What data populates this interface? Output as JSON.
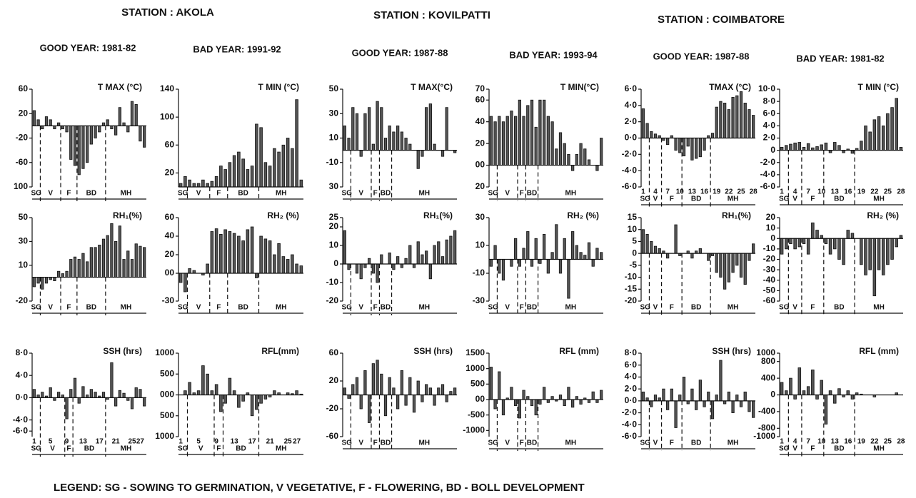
{
  "stations": [
    {
      "name": "STATION : AKOLA",
      "years": [
        "GOOD YEAR: 1981-82",
        "BAD YEAR: 1991-92"
      ]
    },
    {
      "name": "STATION : KOVILPATTI",
      "years": [
        "GOOD YEAR: 1987-88",
        "BAD YEAR: 1993-94"
      ]
    },
    {
      "name": "STATION : COIMBATORE",
      "years": [
        "GOOD YEAR: 1987-88",
        "BAD YEAR: 1981-82"
      ]
    }
  ],
  "legend": "LEGEND:  SG - SOWING TO GERMINATION,   V   VEGETATIVE,    F - FLOWERING,   BD - BOLL DEVELOPMENT",
  "chart_data": [
    {
      "type": "bar",
      "title": "T MAX (°C)",
      "color": "#555",
      "ylim": [
        -100,
        60
      ],
      "yticks": [
        60,
        20,
        -20,
        -60,
        {
          "value": -100,
          "label": "100"
        }
      ],
      "values": [
        25,
        10,
        -5,
        15,
        10,
        -5,
        5,
        -5,
        -10,
        -55,
        -65,
        -80,
        -70,
        -60,
        -30,
        -20,
        -10,
        5,
        10,
        -5,
        -15,
        30,
        5,
        -10,
        40,
        35,
        -25,
        -35
      ],
      "stages": [
        "SG",
        "V",
        "F",
        "BD",
        "MH"
      ],
      "stage_breaks": [
        2,
        7,
        11,
        18
      ]
    },
    {
      "type": "bar",
      "title": "T MIN (°C)",
      "color": "#555",
      "ylim": [
        0,
        140
      ],
      "yticks": [
        140,
        100,
        60,
        20
      ],
      "values": [
        5,
        15,
        10,
        5,
        5,
        10,
        5,
        8,
        15,
        30,
        25,
        35,
        45,
        50,
        40,
        25,
        30,
        90,
        85,
        35,
        30,
        55,
        50,
        60,
        70,
        55,
        125,
        10
      ],
      "stages": [
        "SG",
        "V",
        "F",
        "BD",
        "MH"
      ],
      "stage_breaks": [
        2,
        7,
        11,
        18
      ]
    },
    {
      "type": "bar",
      "title": "T MAX(°C)",
      "color": "#555",
      "ylim": [
        -30,
        50
      ],
      "yticks": [
        50,
        30,
        10,
        -10,
        {
          "value": -30,
          "label": "30"
        }
      ],
      "values": [
        20,
        10,
        35,
        30,
        -5,
        30,
        35,
        5,
        40,
        35,
        10,
        20,
        15,
        20,
        15,
        10,
        5,
        0,
        -15,
        -5,
        35,
        38,
        5,
        0,
        -5,
        35,
        0,
        -2
      ],
      "stages": [
        "SG",
        "V",
        "F",
        "BD",
        "MH"
      ],
      "stage_breaks": [
        2,
        7,
        9,
        12
      ]
    },
    {
      "type": "bar",
      "title": "T MIN(°C)",
      "color": "#555",
      "ylim": [
        -20,
        70
      ],
      "yticks": [
        70,
        60,
        40,
        20,
        {
          "value": 0,
          "label": "00"
        },
        {
          "value": -20,
          "label": "20"
        }
      ],
      "values": [
        45,
        40,
        45,
        40,
        45,
        50,
        45,
        60,
        45,
        55,
        60,
        35,
        60,
        60,
        45,
        40,
        15,
        30,
        20,
        10,
        -5,
        10,
        20,
        15,
        5,
        0,
        -5,
        25
      ],
      "stages": [
        "SG",
        "V",
        "F",
        "BD",
        "MH"
      ],
      "stage_breaks": [
        2,
        7,
        9,
        12
      ]
    },
    {
      "type": "bar",
      "title": "TMAX (°C)",
      "color": "#555",
      "ylim": [
        -6,
        6
      ],
      "yticks": [
        {
          "value": 6,
          "label": "6·0"
        },
        {
          "value": 4,
          "label": "4·0"
        },
        {
          "value": 2,
          "label": "2·0"
        },
        {
          "value": 0,
          "label": "0·0"
        },
        {
          "value": -2,
          "label": "-2·0"
        },
        {
          "value": -4,
          "label": "-4·0"
        },
        {
          "value": -6,
          "label": "-6·0"
        }
      ],
      "values": [
        3.6,
        1.8,
        0.8,
        0.5,
        0.3,
        -0.3,
        -0.8,
        0.3,
        -1.5,
        -1.8,
        -2.2,
        -1,
        -2.7,
        -2.5,
        -2.3,
        -1.5,
        0.3,
        0.6,
        3.8,
        4.5,
        4.3,
        3.5,
        5,
        5.2,
        5.7,
        4.3,
        3.5,
        2.8
      ],
      "categories": [
        "1",
        null,
        null,
        "4",
        null,
        null,
        "7",
        null,
        null,
        "10",
        null,
        null,
        "13",
        null,
        null,
        "16",
        null,
        null,
        "19",
        null,
        null,
        "22",
        null,
        null,
        "25",
        null,
        null,
        "28"
      ],
      "stages": [
        "SG",
        "V",
        "F",
        "BD",
        "MH"
      ],
      "stage_breaks": [
        2,
        5,
        10,
        17
      ]
    },
    {
      "type": "bar",
      "title": "T MIN (°C)",
      "color": "#555",
      "ylim": [
        -6,
        10
      ],
      "yticks": [
        {
          "value": 10,
          "label": "10·0"
        },
        {
          "value": 8,
          "label": "8·0"
        },
        {
          "value": 6,
          "label": "6·0"
        },
        {
          "value": 4,
          "label": "4·0"
        },
        {
          "value": 2,
          "label": "2·0"
        },
        0,
        {
          "value": -2,
          "label": "-2·0"
        },
        {
          "value": -4,
          "label": "-4·0"
        },
        {
          "value": -6,
          "label": "-6·0"
        }
      ],
      "values": [
        0.5,
        0.8,
        1,
        1.2,
        1.3,
        0.5,
        1.1,
        0.4,
        0.6,
        0.9,
        1.2,
        -0.4,
        1.3,
        0.8,
        -0.4,
        0.2,
        -0.5,
        0.3,
        1.5,
        4,
        3,
        5,
        5.5,
        4,
        6,
        7,
        8.5,
        0.5
      ],
      "categories": [
        "1",
        null,
        null,
        "4",
        null,
        null,
        "7",
        null,
        null,
        "10",
        null,
        null,
        "13",
        null,
        null,
        "16",
        null,
        null,
        "19",
        null,
        null,
        "22",
        null,
        null,
        "25",
        null,
        null,
        "28"
      ],
      "stages": [
        "SG",
        "V",
        "F",
        "BD",
        "MH"
      ],
      "stage_breaks": [
        2,
        5,
        10,
        17
      ]
    },
    {
      "type": "bar",
      "title": "RH₁(%)",
      "color": "#555",
      "ylim": [
        -20,
        50
      ],
      "yticks": [
        50,
        30,
        10,
        -20
      ],
      "values": [
        -8,
        -5,
        -10,
        -5,
        -2,
        -3,
        5,
        3,
        5,
        15,
        17,
        15,
        20,
        13,
        25,
        25,
        27,
        32,
        35,
        45,
        30,
        43,
        15,
        22,
        15,
        28,
        26,
        25
      ],
      "stages": [
        "SG",
        "V",
        "F",
        "BD",
        "MH"
      ],
      "stage_breaks": [
        2,
        7,
        11,
        18
      ]
    },
    {
      "type": "bar",
      "title": "RH₂ (%)",
      "color": "#555",
      "ylim": [
        -30,
        60
      ],
      "yticks": [
        60,
        40,
        20,
        {
          "value": 0,
          "label": "00"
        },
        -30
      ],
      "values": [
        -10,
        -20,
        5,
        3,
        0,
        -2,
        10,
        45,
        48,
        42,
        47,
        45,
        43,
        40,
        35,
        47,
        50,
        -5,
        40,
        37,
        35,
        20,
        32,
        18,
        15,
        20,
        10,
        8
      ],
      "stages": [
        "SG",
        "V",
        "F",
        "BD",
        "MH"
      ],
      "stage_breaks": [
        2,
        7,
        11,
        18
      ]
    },
    {
      "type": "bar",
      "title": "RH₁(%)",
      "color": "#555",
      "ylim": [
        -20,
        25
      ],
      "yticks": [
        25,
        20,
        10,
        0,
        -10,
        -20
      ],
      "values": [
        18,
        -3,
        0,
        -5,
        -8,
        -2,
        3,
        -5,
        -10,
        5,
        0,
        6,
        -3,
        4,
        -2,
        3,
        10,
        -2,
        12,
        5,
        7,
        -8,
        10,
        12,
        4,
        13,
        15,
        18
      ],
      "stages": [
        "SG",
        "V",
        "F",
        "BD",
        "MH"
      ],
      "stage_breaks": [
        2,
        7,
        9,
        12
      ]
    },
    {
      "type": "bar",
      "title": "RH₂ (%)",
      "color": "#555",
      "ylim": [
        -30,
        30
      ],
      "yticks": [
        30,
        10,
        -10,
        -30
      ],
      "values": [
        -5,
        10,
        -10,
        -15,
        0,
        -5,
        15,
        -5,
        8,
        20,
        -5,
        15,
        -3,
        18,
        -10,
        5,
        25,
        -10,
        15,
        -28,
        20,
        10,
        5,
        3,
        12,
        -5,
        8,
        5
      ],
      "stages": [
        "SG",
        "V",
        "F",
        "BD",
        "MH"
      ],
      "stage_breaks": [
        2,
        7,
        9,
        12
      ]
    },
    {
      "type": "bar",
      "title": "RH₁(%)",
      "color": "#555",
      "ylim": [
        -20,
        15
      ],
      "yticks": [
        15,
        10,
        5,
        0,
        -5,
        -10,
        -15,
        -20
      ],
      "values": [
        10,
        8,
        5,
        3,
        2,
        1,
        -2,
        0,
        12,
        -1,
        0,
        1,
        -2,
        1,
        2,
        0,
        -3,
        -1,
        -8,
        -10,
        -15,
        -12,
        -8,
        -5,
        -10,
        -13,
        -3,
        4
      ],
      "stages": [
        "SG",
        "V",
        "F",
        "BD",
        "MH"
      ],
      "stage_breaks": [
        2,
        5,
        10,
        17
      ]
    },
    {
      "type": "bar",
      "title": "RH₂ (%)",
      "color": "#555",
      "ylim": [
        -60,
        20
      ],
      "yticks": [
        20,
        10,
        0,
        -10,
        -20,
        -30,
        -40,
        -50,
        -60
      ],
      "values": [
        -15,
        -10,
        -5,
        -10,
        -8,
        -5,
        -15,
        15,
        8,
        3,
        -5,
        -15,
        -10,
        -20,
        -25,
        8,
        5,
        0,
        -25,
        -35,
        -30,
        -55,
        -30,
        -35,
        -25,
        -20,
        -8,
        3
      ],
      "stages": [
        "SG",
        "V",
        "F",
        "BD",
        "MH"
      ],
      "stage_breaks": [
        2,
        5,
        10,
        17
      ]
    },
    {
      "type": "bar",
      "title": "SSH (hrs)",
      "color": "#555",
      "ylim": [
        -7,
        8
      ],
      "yticks": [
        {
          "value": 8,
          "label": "8·0"
        },
        {
          "value": 4,
          "label": "4·0"
        },
        {
          "value": 0,
          "label": "0·0"
        },
        {
          "value": -4,
          "label": "-4·0"
        },
        {
          "value": -6,
          "label": "-6·0"
        }
      ],
      "values": [
        1.5,
        0.5,
        1,
        0.3,
        1.8,
        -0.5,
        1,
        0.5,
        -3.8,
        1.5,
        3.5,
        -1,
        2,
        0.5,
        1.5,
        1,
        0.3,
        1,
        -0.3,
        6.3,
        -1.5,
        1.3,
        0.8,
        -0.5,
        -2,
        1.8,
        1.5,
        -1.5
      ],
      "categories": [
        "1",
        null,
        null,
        null,
        "5",
        null,
        null,
        null,
        "9",
        null,
        null,
        null,
        "13",
        null,
        null,
        null,
        "17",
        null,
        null,
        null,
        "21",
        null,
        null,
        null,
        "25",
        null,
        "27",
        null
      ],
      "stages": [
        "SG",
        "V",
        "F",
        "BD",
        "MH"
      ],
      "stage_breaks": [
        2,
        8,
        10,
        18
      ]
    },
    {
      "type": "bar",
      "title": "RFL(mm)",
      "color": "#555",
      "ylim": [
        -1000,
        1000
      ],
      "yticks": [
        1000,
        {
          "value": 500,
          "label": "500"
        },
        {
          "value": 0,
          "label": "000"
        },
        {
          "value": -500,
          "label": "500"
        },
        {
          "value": -1000,
          "label": "1000"
        }
      ],
      "values": [
        0,
        100,
        300,
        50,
        100,
        700,
        500,
        100,
        250,
        -400,
        -200,
        400,
        100,
        -300,
        -150,
        50,
        -500,
        -350,
        -200,
        -100,
        -50,
        100,
        50,
        0,
        50,
        30,
        100,
        20
      ],
      "categories": [
        "1",
        null,
        null,
        null,
        "5",
        null,
        null,
        null,
        "9",
        null,
        null,
        null,
        "13",
        null,
        null,
        null,
        "17",
        null,
        null,
        null,
        "21",
        null,
        null,
        null,
        "25",
        null,
        "27",
        null
      ],
      "stages": [
        "SG",
        "V",
        "F",
        "BD",
        "MH"
      ],
      "stage_breaks": [
        2,
        8,
        10,
        18
      ]
    },
    {
      "type": "bar",
      "title": "SSH (hrs)",
      "color": "#555",
      "ylim": [
        -60,
        60
      ],
      "yticks": [
        60,
        20,
        -20,
        -60
      ],
      "values": [
        10,
        -5,
        15,
        25,
        -20,
        35,
        -40,
        45,
        50,
        30,
        -30,
        25,
        10,
        -20,
        35,
        -15,
        25,
        -25,
        20,
        -10,
        15,
        10,
        -15,
        10,
        15,
        -10,
        5,
        10
      ],
      "stages": [
        "SG",
        "V",
        "F",
        "BD",
        "MH"
      ],
      "stage_breaks": [
        2,
        7,
        9,
        12
      ]
    },
    {
      "type": "bar",
      "title": "RFL (mm)",
      "color": "#555",
      "ylim": [
        -1200,
        1500
      ],
      "yticks": [
        1500,
        1000,
        500,
        {
          "value": 0,
          "label": "00"
        },
        -500,
        -1000
      ],
      "values": [
        1050,
        -300,
        900,
        -500,
        50,
        400,
        -200,
        -600,
        300,
        100,
        -200,
        -500,
        -150,
        400,
        -100,
        100,
        -50,
        150,
        -200,
        400,
        -250,
        100,
        -150,
        50,
        -100,
        250,
        -100,
        300
      ],
      "stages": [
        "SG",
        "V",
        "F",
        "BD",
        "MH"
      ],
      "stage_breaks": [
        2,
        7,
        9,
        12
      ]
    },
    {
      "type": "bar",
      "title": "SSH (hrs)",
      "color": "#555",
      "ylim": [
        -6,
        8
      ],
      "yticks": [
        {
          "value": 8,
          "label": "8·0"
        },
        {
          "value": 6,
          "label": "6·0"
        },
        {
          "value": 4,
          "label": "4·0"
        },
        {
          "value": 2,
          "label": "2·0"
        },
        {
          "value": 0,
          "label": "0·0"
        },
        {
          "value": -2,
          "label": "-2·0"
        },
        {
          "value": -4,
          "label": "-4·0"
        },
        {
          "value": -6,
          "label": "-6·0"
        }
      ],
      "values": [
        1.5,
        0.5,
        -1,
        1,
        0.5,
        2,
        -1.5,
        2,
        -4.5,
        1,
        4,
        -0.5,
        2,
        -1.5,
        3.5,
        -1,
        1.5,
        -3,
        1,
        6.8,
        -0.5,
        1.5,
        -2,
        1,
        -1,
        1.5,
        -1.8,
        -2.8
      ],
      "stages": [
        "SG",
        "V",
        "F",
        "BD",
        "MH"
      ],
      "stage_breaks": [
        2,
        5,
        10,
        17
      ]
    },
    {
      "type": "bar",
      "title": "RFL (mm)",
      "color": "#555",
      "ylim": [
        -1000,
        1000
      ],
      "yticks": [
        1000,
        800,
        400,
        0,
        -400,
        -800,
        -1000
      ],
      "values": [
        300,
        100,
        400,
        -100,
        650,
        100,
        200,
        600,
        -100,
        350,
        -700,
        100,
        -200,
        150,
        -50,
        100,
        -100,
        50,
        20,
        0,
        0,
        -50,
        0,
        0,
        0,
        0,
        50,
        0
      ],
      "categories": [
        "1",
        null,
        null,
        "4",
        null,
        null,
        "7",
        null,
        null,
        "10",
        null,
        null,
        "13",
        null,
        null,
        "16",
        null,
        null,
        "19",
        null,
        null,
        "22",
        null,
        null,
        "25",
        null,
        null,
        "28"
      ],
      "stages": [
        "SG",
        "V",
        "F",
        "BD",
        "MH"
      ],
      "stage_breaks": [
        2,
        5,
        10,
        17
      ]
    }
  ]
}
